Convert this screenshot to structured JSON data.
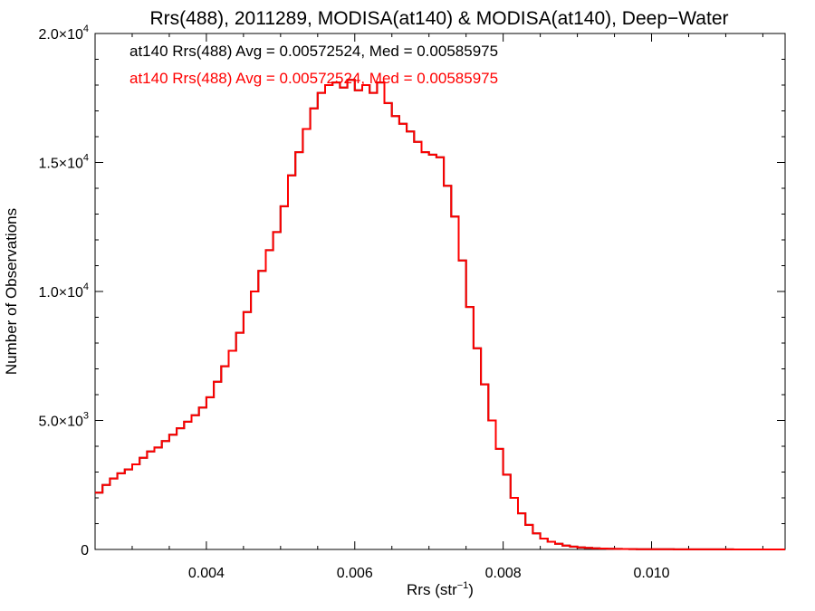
{
  "chart_data": {
    "type": "line",
    "title": "Rrs(488), 2011289, MODISA(at140) & MODISA(at140), Deep−Water",
    "xlabel": "Rrs (str",
    "xlabel_sup": "−1",
    "xlabel_close": ")",
    "ylabel": "Number of Observations",
    "xlim": [
      0.0025,
      0.0118
    ],
    "ylim": [
      0,
      20000
    ],
    "x_ticks": [
      {
        "value": 0.004,
        "label": "0.004"
      },
      {
        "value": 0.006,
        "label": "0.006"
      },
      {
        "value": 0.008,
        "label": "0.008"
      },
      {
        "value": 0.01,
        "label": "0.010"
      }
    ],
    "y_ticks": [
      {
        "value": 0,
        "label": "0",
        "exp": ""
      },
      {
        "value": 5000,
        "label": "5.0×10",
        "exp": "3"
      },
      {
        "value": 10000,
        "label": "1.0×10",
        "exp": "4"
      },
      {
        "value": 15000,
        "label": "1.5×10",
        "exp": "4"
      },
      {
        "value": 20000,
        "label": "2.0×10",
        "exp": "4"
      }
    ],
    "grid": false,
    "legend_position": "top-left",
    "annotations": [
      {
        "text": "at140 Rrs(488) Avg = 0.00572524, Med = 0.00585975",
        "color": "#000000"
      },
      {
        "text": "at140 Rrs(488) Avg = 0.00572524, Med = 0.00585975",
        "color": "#ff0000"
      }
    ],
    "series": [
      {
        "color": "#ff0000",
        "overlay_color": "#000000",
        "x": [
          0.0025,
          0.0026,
          0.0027,
          0.0028,
          0.0029,
          0.003,
          0.0031,
          0.0032,
          0.0033,
          0.0034,
          0.0035,
          0.0036,
          0.0037,
          0.0038,
          0.0039,
          0.004,
          0.0041,
          0.0042,
          0.0043,
          0.0044,
          0.0045,
          0.0046,
          0.0047,
          0.0048,
          0.0049,
          0.005,
          0.0051,
          0.0052,
          0.0053,
          0.0054,
          0.0055,
          0.0056,
          0.0057,
          0.0058,
          0.0059,
          0.006,
          0.0061,
          0.0062,
          0.0063,
          0.0064,
          0.0065,
          0.0066,
          0.0067,
          0.0068,
          0.0069,
          0.007,
          0.0071,
          0.0072,
          0.0073,
          0.0074,
          0.0075,
          0.0076,
          0.0077,
          0.0078,
          0.0079,
          0.008,
          0.0081,
          0.0082,
          0.0083,
          0.0084,
          0.0085,
          0.0086,
          0.0087,
          0.0088,
          0.0089,
          0.009,
          0.0091,
          0.0092,
          0.0093,
          0.0094,
          0.0095,
          0.0096,
          0.0097,
          0.0098,
          0.0099,
          0.01,
          0.0101,
          0.0102,
          0.0103,
          0.0104,
          0.0105,
          0.0106,
          0.0107,
          0.0108,
          0.0109,
          0.011,
          0.0111,
          0.0112,
          0.0113,
          0.0114,
          0.0115,
          0.0116,
          0.0117,
          0.0118
        ],
        "values": [
          2200,
          2500,
          2750,
          2950,
          3100,
          3300,
          3550,
          3800,
          3950,
          4200,
          4450,
          4700,
          4950,
          5200,
          5500,
          5900,
          6500,
          7100,
          7700,
          8400,
          9200,
          10000,
          10800,
          11600,
          12300,
          13300,
          14500,
          15400,
          16300,
          17100,
          17700,
          18000,
          18100,
          17900,
          18200,
          17800,
          18000,
          17700,
          18100,
          17300,
          16800,
          16500,
          16200,
          15800,
          15400,
          15300,
          15200,
          14100,
          12900,
          11200,
          9400,
          7800,
          6400,
          5000,
          3900,
          2900,
          2000,
          1400,
          950,
          620,
          420,
          300,
          220,
          150,
          110,
          80,
          60,
          45,
          35,
          28,
          22,
          18,
          15,
          12,
          10,
          8,
          7,
          6,
          5,
          4,
          4,
          3,
          3,
          2,
          2,
          2,
          1,
          1,
          1,
          1,
          1,
          1,
          1,
          1
        ]
      }
    ]
  }
}
